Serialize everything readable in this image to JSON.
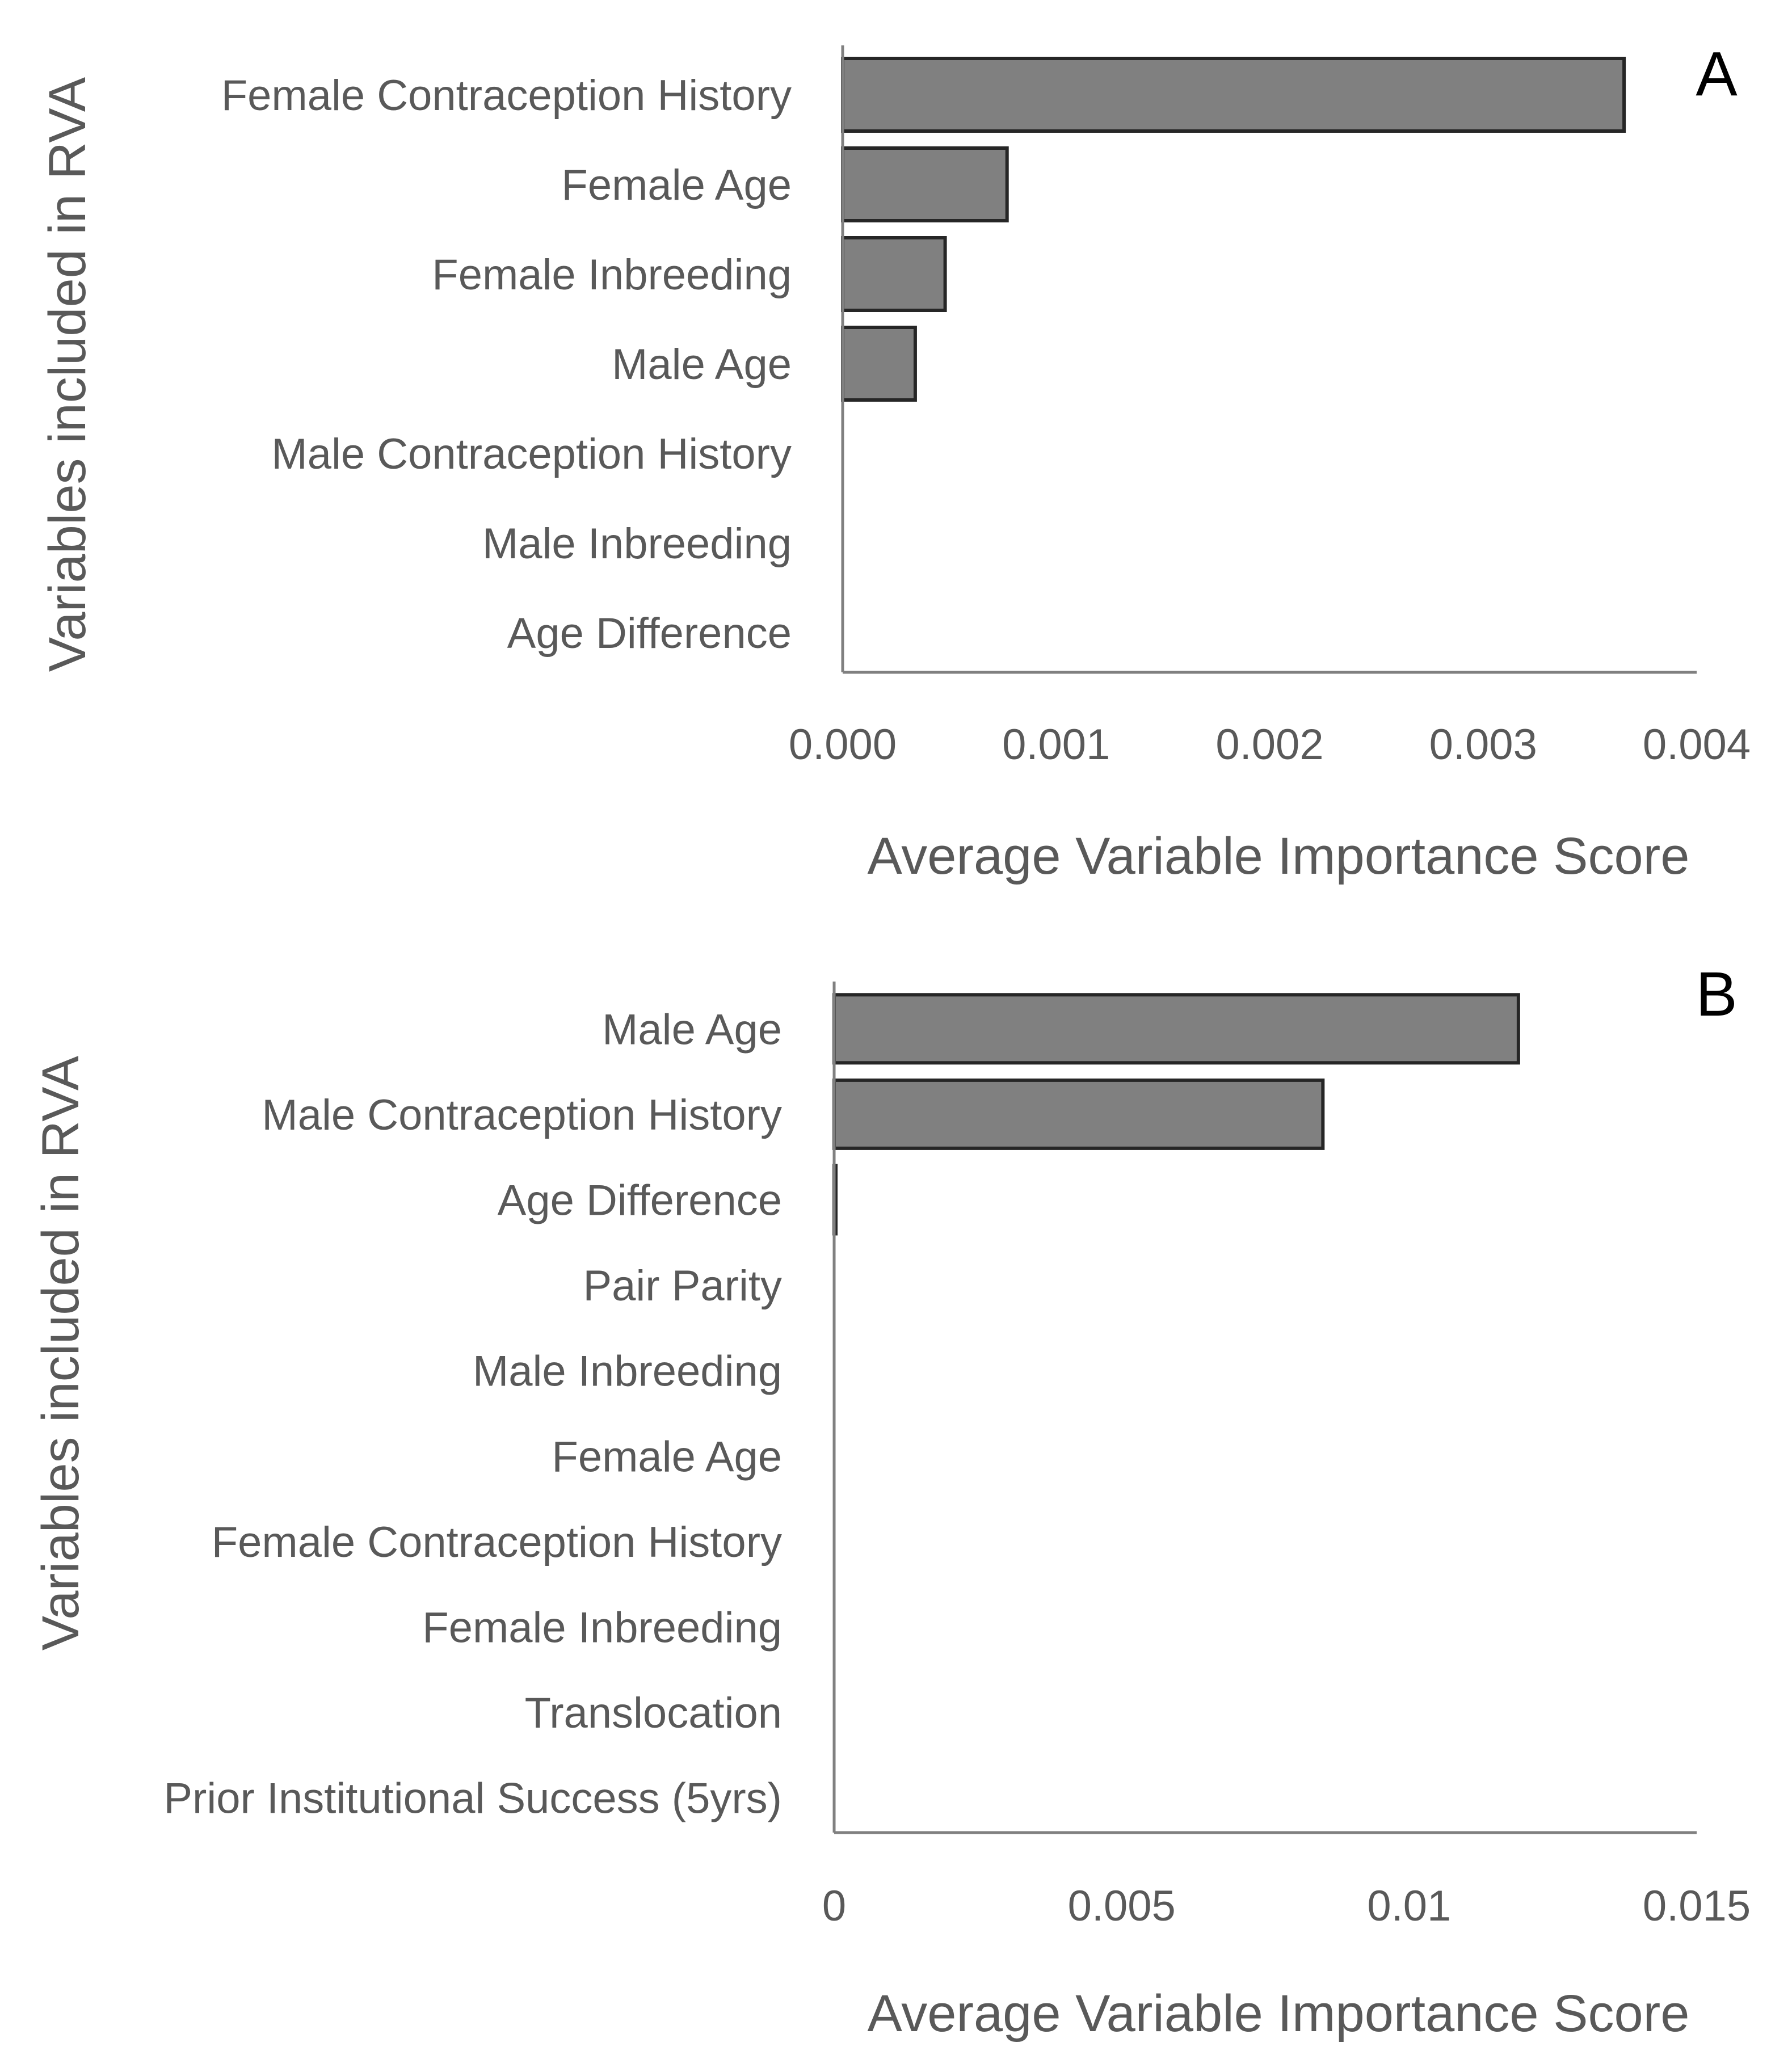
{
  "chart_data": [
    {
      "type": "bar",
      "orientation": "horizontal",
      "panel_label": "A",
      "categories": [
        "Female Contraception History",
        "Female Age",
        "Female Inbreeding",
        "Male Age",
        "Male Contraception History",
        "Male Inbreeding",
        "Age Difference"
      ],
      "values": [
        0.00366,
        0.00077,
        0.00048,
        0.00034,
        0,
        0,
        0
      ],
      "xlabel": "Average Variable Importance Score",
      "ylabel": "Variables included in RVA",
      "xlim": [
        0,
        0.004
      ],
      "xticks": [
        "0.000",
        "0.001",
        "0.002",
        "0.003",
        "0.004"
      ],
      "grid": false
    },
    {
      "type": "bar",
      "orientation": "horizontal",
      "panel_label": "B",
      "categories": [
        "Male Age",
        "Male Contraception History",
        "Age Difference",
        "Pair Parity",
        "Male Inbreeding",
        "Female Age",
        "Female Contraception History",
        "Female Inbreeding",
        "Translocation",
        "Prior Institutional Success (5yrs)"
      ],
      "values": [
        0.0119,
        0.0085,
        3e-05,
        0,
        0,
        0,
        0,
        0,
        0,
        0
      ],
      "xlabel": "Average Variable Importance Score",
      "ylabel": "Variables included in RVA",
      "xlim": [
        0,
        0.015
      ],
      "xticks": [
        "0",
        "0.005",
        "0.01",
        "0.015"
      ],
      "grid": false
    }
  ]
}
